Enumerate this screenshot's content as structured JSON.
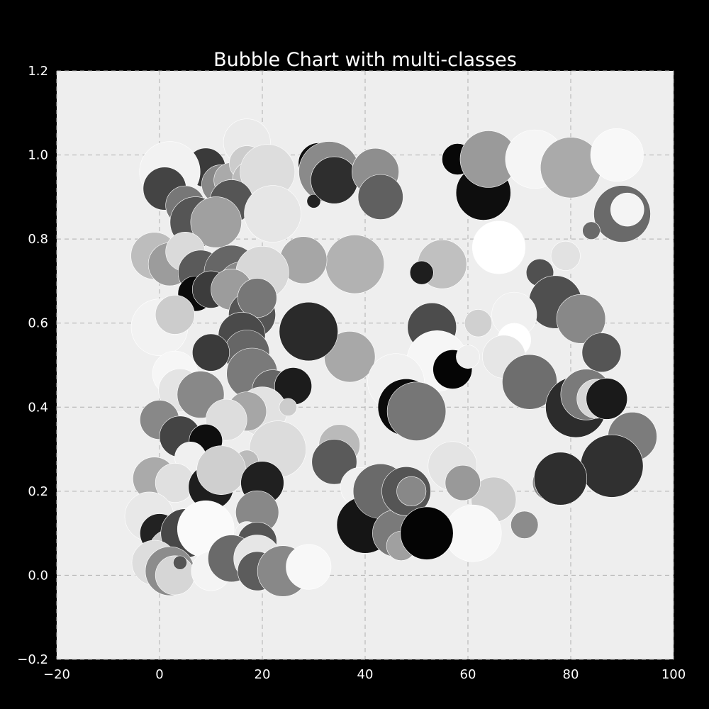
{
  "chart_data": {
    "type": "scatter",
    "title": "Bubble Chart with multi-classes",
    "xlabel": "",
    "ylabel": "",
    "xlim": [
      -20,
      100
    ],
    "ylim": [
      -0.2,
      1.2
    ],
    "x_ticks": [
      -20,
      0,
      20,
      40,
      60,
      80,
      100
    ],
    "x_tick_labels": [
      "−20",
      "0",
      "20",
      "40",
      "60",
      "80",
      "100"
    ],
    "y_ticks": [
      -0.2,
      0.0,
      0.2,
      0.4,
      0.6,
      0.8,
      1.0,
      1.2
    ],
    "y_tick_labels": [
      "−0.2",
      "0.0",
      "0.2",
      "0.4",
      "0.6",
      "0.8",
      "1.0",
      "1.2"
    ],
    "grid": true,
    "legend": "none",
    "colors": {
      "figure_background": "#000000",
      "plot_background": "#eeeeee",
      "grid": "#b0b0b0",
      "text": "#ffffff",
      "bubble_edge": "#ffffff"
    },
    "points": [
      {
        "x": 17,
        "y": 1.03,
        "size": 48,
        "gray": "#eaeaea"
      },
      {
        "x": 9,
        "y": 0.97,
        "size": 40,
        "gray": "#3a3a3a"
      },
      {
        "x": 31,
        "y": 0.98,
        "size": 42,
        "gray": "#111111"
      },
      {
        "x": 33,
        "y": 0.96,
        "size": 62,
        "gray": "#8a8a8a"
      },
      {
        "x": 30,
        "y": 0.89,
        "size": 14,
        "gray": "#222222"
      },
      {
        "x": 34,
        "y": 0.94,
        "size": 48,
        "gray": "#2e2e2e"
      },
      {
        "x": 42,
        "y": 0.96,
        "size": 48,
        "gray": "#8e8e8e"
      },
      {
        "x": 43,
        "y": 0.9,
        "size": 46,
        "gray": "#606060"
      },
      {
        "x": 58,
        "y": 0.99,
        "size": 32,
        "gray": "#080808"
      },
      {
        "x": 63,
        "y": 0.91,
        "size": 56,
        "gray": "#0e0e0e"
      },
      {
        "x": 64,
        "y": 0.99,
        "size": 58,
        "gray": "#9a9a9a"
      },
      {
        "x": 73,
        "y": 0.99,
        "size": 60,
        "gray": "#f5f5f5"
      },
      {
        "x": 80,
        "y": 0.97,
        "size": 62,
        "gray": "#aaaaaa"
      },
      {
        "x": 89,
        "y": 1.0,
        "size": 54,
        "gray": "#f8f8f8"
      },
      {
        "x": 90,
        "y": 0.86,
        "size": 58,
        "gray": "#6a6a6a"
      },
      {
        "x": 91,
        "y": 0.87,
        "size": 34,
        "gray": "#f4f4f4"
      },
      {
        "x": 84,
        "y": 0.82,
        "size": 18,
        "gray": "#6a6a6a"
      },
      {
        "x": 66,
        "y": 0.78,
        "size": 54,
        "gray": "#ffffff"
      },
      {
        "x": 79,
        "y": 0.76,
        "size": 30,
        "gray": "#e2e2e2"
      },
      {
        "x": 74,
        "y": 0.72,
        "size": 28,
        "gray": "#505050"
      },
      {
        "x": 77,
        "y": 0.65,
        "size": 54,
        "gray": "#4f4f4f"
      },
      {
        "x": 82,
        "y": 0.61,
        "size": 50,
        "gray": "#888888"
      },
      {
        "x": 69,
        "y": 0.62,
        "size": 46,
        "gray": "#f0f0f0"
      },
      {
        "x": 62,
        "y": 0.6,
        "size": 28,
        "gray": "#d0d0d0"
      },
      {
        "x": 69,
        "y": 0.56,
        "size": 34,
        "gray": "#ffffff"
      },
      {
        "x": 67,
        "y": 0.52,
        "size": 44,
        "gray": "#e6e6e6"
      },
      {
        "x": 86,
        "y": 0.53,
        "size": 40,
        "gray": "#555555"
      },
      {
        "x": 72,
        "y": 0.46,
        "size": 56,
        "gray": "#6e6e6e"
      },
      {
        "x": 81,
        "y": 0.4,
        "size": 62,
        "gray": "#2c2c2c"
      },
      {
        "x": 83,
        "y": 0.43,
        "size": 52,
        "gray": "#7a7a7a"
      },
      {
        "x": 85,
        "y": 0.42,
        "size": 40,
        "gray": "#d6d6d6"
      },
      {
        "x": 87,
        "y": 0.42,
        "size": 42,
        "gray": "#1a1a1a"
      },
      {
        "x": 92,
        "y": 0.33,
        "size": 50,
        "gray": "#7c7c7c"
      },
      {
        "x": 88,
        "y": 0.26,
        "size": 64,
        "gray": "#303030"
      },
      {
        "x": 76,
        "y": 0.22,
        "size": 36,
        "gray": "#8a8a8a"
      },
      {
        "x": 78,
        "y": 0.23,
        "size": 54,
        "gray": "#2e2e2e"
      },
      {
        "x": 65,
        "y": 0.18,
        "size": 46,
        "gray": "#cccccc"
      },
      {
        "x": 71,
        "y": 0.12,
        "size": 28,
        "gray": "#8c8c8c"
      },
      {
        "x": 61,
        "y": 0.1,
        "size": 58,
        "gray": "#f8f8f8"
      },
      {
        "x": 57,
        "y": 0.26,
        "size": 50,
        "gray": "#e4e4e4"
      },
      {
        "x": 59,
        "y": 0.22,
        "size": 36,
        "gray": "#999999"
      },
      {
        "x": 55,
        "y": 0.74,
        "size": 50,
        "gray": "#c0c0c0"
      },
      {
        "x": 51,
        "y": 0.72,
        "size": 24,
        "gray": "#1e1e1e"
      },
      {
        "x": 53,
        "y": 0.59,
        "size": 50,
        "gray": "#4c4c4c"
      },
      {
        "x": 54,
        "y": 0.51,
        "size": 62,
        "gray": "#f6f6f6"
      },
      {
        "x": 57,
        "y": 0.49,
        "size": 40,
        "gray": "#050505"
      },
      {
        "x": 60,
        "y": 0.52,
        "size": 24,
        "gray": "#eeeeee"
      },
      {
        "x": 38,
        "y": 0.74,
        "size": 60,
        "gray": "#b2b2b2"
      },
      {
        "x": 28,
        "y": 0.75,
        "size": 48,
        "gray": "#a6a6a6"
      },
      {
        "x": 37,
        "y": 0.52,
        "size": 52,
        "gray": "#a8a8a8"
      },
      {
        "x": 46,
        "y": 0.46,
        "size": 58,
        "gray": "#f0f0f0"
      },
      {
        "x": 48,
        "y": 0.4,
        "size": 58,
        "gray": "#0a0a0a"
      },
      {
        "x": 50,
        "y": 0.39,
        "size": 60,
        "gray": "#767676"
      },
      {
        "x": 29,
        "y": 0.58,
        "size": 60,
        "gray": "#2a2a2a"
      },
      {
        "x": 35,
        "y": 0.31,
        "size": 42,
        "gray": "#bababa"
      },
      {
        "x": 34,
        "y": 0.27,
        "size": 46,
        "gray": "#5a5a5a"
      },
      {
        "x": 39,
        "y": 0.21,
        "size": 40,
        "gray": "#f0f0f0"
      },
      {
        "x": 41,
        "y": 0.12,
        "size": 44,
        "gray": "#0c0c0c"
      },
      {
        "x": 40,
        "y": 0.12,
        "size": 58,
        "gray": "#151515"
      },
      {
        "x": 43,
        "y": 0.2,
        "size": 56,
        "gray": "#6a6a6a"
      },
      {
        "x": 46,
        "y": 0.1,
        "size": 48,
        "gray": "#7a7a7a"
      },
      {
        "x": 47,
        "y": 0.07,
        "size": 30,
        "gray": "#a0a0a0"
      },
      {
        "x": 48,
        "y": 0.2,
        "size": 50,
        "gray": "#555555"
      },
      {
        "x": 49,
        "y": 0.2,
        "size": 30,
        "gray": "#888888"
      },
      {
        "x": 52,
        "y": 0.1,
        "size": 54,
        "gray": "#040404"
      },
      {
        "x": 2,
        "y": 0.97,
        "size": 44,
        "gray": "#eeeeee"
      },
      {
        "x": 2,
        "y": 0.96,
        "size": 62,
        "gray": "#f2f2f2"
      },
      {
        "x": 1,
        "y": 0.92,
        "size": 44,
        "gray": "#444444"
      },
      {
        "x": 5,
        "y": 0.88,
        "size": 40,
        "gray": "#777777"
      },
      {
        "x": 7,
        "y": 0.84,
        "size": 52,
        "gray": "#555555"
      },
      {
        "x": 12,
        "y": 0.93,
        "size": 40,
        "gray": "#888888"
      },
      {
        "x": 14,
        "y": 0.94,
        "size": 36,
        "gray": "#aaaaaa"
      },
      {
        "x": 17,
        "y": 0.98,
        "size": 36,
        "gray": "#cccccc"
      },
      {
        "x": 18,
        "y": 0.94,
        "size": 40,
        "gray": "#bbbbbb"
      },
      {
        "x": 21,
        "y": 0.96,
        "size": 56,
        "gray": "#dddddd"
      },
      {
        "x": 14,
        "y": 0.89,
        "size": 44,
        "gray": "#555555"
      },
      {
        "x": 13,
        "y": 0.84,
        "size": 20,
        "gray": "#222222"
      },
      {
        "x": 11,
        "y": 0.84,
        "size": 52,
        "gray": "#a0a0a0"
      },
      {
        "x": 22,
        "y": 0.86,
        "size": 58,
        "gray": "#e6e6e6"
      },
      {
        "x": -1,
        "y": 0.76,
        "size": 48,
        "gray": "#bdbdbd"
      },
      {
        "x": 2,
        "y": 0.74,
        "size": 44,
        "gray": "#9c9c9c"
      },
      {
        "x": 5,
        "y": 0.77,
        "size": 40,
        "gray": "#dadada"
      },
      {
        "x": 8,
        "y": 0.72,
        "size": 46,
        "gray": "#5a5a5a"
      },
      {
        "x": 14,
        "y": 0.72,
        "size": 56,
        "gray": "#666666"
      },
      {
        "x": 16,
        "y": 0.69,
        "size": 48,
        "gray": "#8a8a8a"
      },
      {
        "x": 20,
        "y": 0.72,
        "size": 54,
        "gray": "#d8d8d8"
      },
      {
        "x": 7,
        "y": 0.67,
        "size": 36,
        "gray": "#0a0a0a"
      },
      {
        "x": 10,
        "y": 0.68,
        "size": 38,
        "gray": "#3c3c3c"
      },
      {
        "x": 14,
        "y": 0.68,
        "size": 42,
        "gray": "#9c9c9c"
      },
      {
        "x": 18,
        "y": 0.62,
        "size": 48,
        "gray": "#555555"
      },
      {
        "x": 19,
        "y": 0.66,
        "size": 40,
        "gray": "#777777"
      },
      {
        "x": 0,
        "y": 0.59,
        "size": 58,
        "gray": "#f2f2f2"
      },
      {
        "x": 3,
        "y": 0.62,
        "size": 40,
        "gray": "#cccccc"
      },
      {
        "x": 16,
        "y": 0.57,
        "size": 48,
        "gray": "#4a4a4a"
      },
      {
        "x": 17,
        "y": 0.53,
        "size": 46,
        "gray": "#666666"
      },
      {
        "x": 10,
        "y": 0.53,
        "size": 38,
        "gray": "#3a3a3a"
      },
      {
        "x": 3,
        "y": 0.48,
        "size": 46,
        "gray": "#f6f6f6"
      },
      {
        "x": 4,
        "y": 0.44,
        "size": 44,
        "gray": "#e4e4e4"
      },
      {
        "x": 8,
        "y": 0.44,
        "size": 40,
        "gray": "#444444"
      },
      {
        "x": 8,
        "y": 0.43,
        "size": 48,
        "gray": "#888888"
      },
      {
        "x": 18,
        "y": 0.48,
        "size": 52,
        "gray": "#7a7a7a"
      },
      {
        "x": 22,
        "y": 0.44,
        "size": 42,
        "gray": "#666666"
      },
      {
        "x": 26,
        "y": 0.45,
        "size": 38,
        "gray": "#1c1c1c"
      },
      {
        "x": 20,
        "y": 0.39,
        "size": 50,
        "gray": "#e2e2e2"
      },
      {
        "x": 25,
        "y": 0.4,
        "size": 18,
        "gray": "#cccccc"
      },
      {
        "x": 17,
        "y": 0.39,
        "size": 40,
        "gray": "#a6a6a6"
      },
      {
        "x": 13,
        "y": 0.37,
        "size": 42,
        "gray": "#dddddd"
      },
      {
        "x": 0,
        "y": 0.37,
        "size": 40,
        "gray": "#888888"
      },
      {
        "x": 4,
        "y": 0.33,
        "size": 42,
        "gray": "#444444"
      },
      {
        "x": 9,
        "y": 0.32,
        "size": 34,
        "gray": "#0e0e0e"
      },
      {
        "x": 23,
        "y": 0.3,
        "size": 58,
        "gray": "#dcdcdc"
      },
      {
        "x": 17,
        "y": 0.27,
        "size": 24,
        "gray": "#bbbbbb"
      },
      {
        "x": 6,
        "y": 0.28,
        "size": 32,
        "gray": "#f0f0f0"
      },
      {
        "x": -1,
        "y": 0.23,
        "size": 44,
        "gray": "#aaaaaa"
      },
      {
        "x": 3,
        "y": 0.22,
        "size": 40,
        "gray": "#e0e0e0"
      },
      {
        "x": 10,
        "y": 0.21,
        "size": 46,
        "gray": "#1e1e1e"
      },
      {
        "x": 12,
        "y": 0.25,
        "size": 50,
        "gray": "#cfcfcf"
      },
      {
        "x": 20,
        "y": 0.22,
        "size": 44,
        "gray": "#202020"
      },
      {
        "x": 19,
        "y": 0.15,
        "size": 44,
        "gray": "#888888"
      },
      {
        "x": -2,
        "y": 0.14,
        "size": 50,
        "gray": "#e8e8e8"
      },
      {
        "x": 0,
        "y": 0.1,
        "size": 40,
        "gray": "#222222"
      },
      {
        "x": 2,
        "y": 0.06,
        "size": 42,
        "gray": "#c8c8c8"
      },
      {
        "x": 5,
        "y": 0.1,
        "size": 50,
        "gray": "#474747"
      },
      {
        "x": 9,
        "y": 0.11,
        "size": 58,
        "gray": "#fafafa"
      },
      {
        "x": 17,
        "y": 0.1,
        "size": 24,
        "gray": "#eeeeee"
      },
      {
        "x": 19,
        "y": 0.08,
        "size": 40,
        "gray": "#555555"
      },
      {
        "x": -1,
        "y": 0.03,
        "size": 46,
        "gray": "#dddddd"
      },
      {
        "x": 2,
        "y": 0.01,
        "size": 50,
        "gray": "#8c8c8c"
      },
      {
        "x": 3,
        "y": 0.0,
        "size": 40,
        "gray": "#d6d6d6"
      },
      {
        "x": 4,
        "y": 0.03,
        "size": 14,
        "gray": "#555555"
      },
      {
        "x": 10,
        "y": 0.01,
        "size": 40,
        "gray": "#f4f4f4"
      },
      {
        "x": 14,
        "y": 0.04,
        "size": 48,
        "gray": "#6a6a6a"
      },
      {
        "x": 19,
        "y": 0.04,
        "size": 48,
        "gray": "#e6e6e6"
      },
      {
        "x": 19,
        "y": 0.01,
        "size": 40,
        "gray": "#5c5c5c"
      },
      {
        "x": 24,
        "y": 0.01,
        "size": 52,
        "gray": "#888888"
      },
      {
        "x": 29,
        "y": 0.02,
        "size": 46,
        "gray": "#f8f8f8"
      }
    ]
  }
}
